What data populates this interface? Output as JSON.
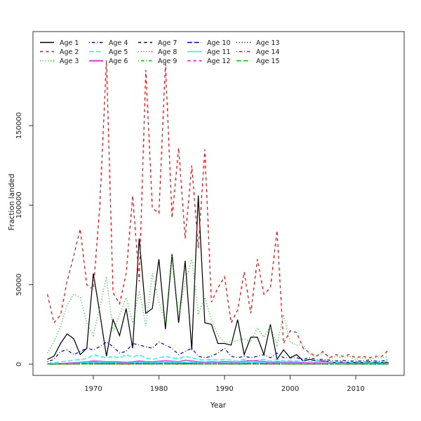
{
  "chart_data": {
    "type": "line",
    "title": "",
    "xlabel": "Year",
    "ylabel": "Fraction landed",
    "x_ticks": [
      1970,
      1980,
      1990,
      2000,
      2010
    ],
    "y_ticks": [
      0,
      50000,
      100000,
      150000
    ],
    "xlim": [
      1961,
      2017
    ],
    "ylim": [
      0,
      195000
    ],
    "grid": false,
    "legend_position": "top-left",
    "legend_columns": 5,
    "x": [
      1963,
      1964,
      1965,
      1966,
      1967,
      1968,
      1969,
      1970,
      1971,
      1972,
      1973,
      1974,
      1975,
      1976,
      1977,
      1978,
      1979,
      1980,
      1981,
      1982,
      1983,
      1984,
      1985,
      1986,
      1987,
      1988,
      1989,
      1990,
      1991,
      1992,
      1993,
      1994,
      1995,
      1996,
      1997,
      1998,
      1999,
      2000,
      2001,
      2002,
      2003,
      2004,
      2005,
      2006,
      2007,
      2008,
      2009,
      2010,
      2011,
      2012,
      2013,
      2014,
      2015
    ],
    "series": [
      {
        "name": "Age 1",
        "color": "#000000",
        "linestyle": "solid",
        "values": [
          3000,
          5000,
          13000,
          19000,
          16000,
          6000,
          10000,
          57000,
          32000,
          5000,
          28000,
          18000,
          35000,
          10000,
          79000,
          32000,
          35000,
          66000,
          22000,
          69000,
          26000,
          65000,
          9000,
          106000,
          26000,
          25000,
          13000,
          13000,
          12000,
          28000,
          6000,
          17000,
          17000,
          6000,
          25000,
          3000,
          9000,
          4000,
          6000,
          2000,
          3000,
          2000,
          2000,
          1500,
          1000,
          1500,
          1000,
          1000,
          1000,
          1500,
          1000,
          1000,
          1000
        ]
      },
      {
        "name": "Age 2",
        "color": "#ff0000",
        "linestyle": "dashed",
        "values": [
          44000,
          26000,
          31000,
          52000,
          68000,
          85000,
          50000,
          47000,
          100000,
          191000,
          45000,
          38000,
          57000,
          106000,
          52000,
          185000,
          98000,
          95000,
          189000,
          92000,
          136000,
          79000,
          125000,
          73000,
          135000,
          39000,
          48000,
          55000,
          26000,
          34000,
          58000,
          32000,
          66000,
          44000,
          48000,
          84000,
          13000,
          21000,
          20000,
          10000,
          7000,
          5000,
          8000,
          4000,
          6000,
          5000,
          6000,
          4000,
          5000,
          4000,
          5000,
          5000,
          9000
        ]
      },
      {
        "name": "Age 3",
        "color": "#00cd00",
        "linestyle": "dotted",
        "values": [
          7000,
          14000,
          24000,
          37000,
          44000,
          42000,
          26000,
          18000,
          36000,
          55000,
          21000,
          31000,
          42000,
          26000,
          46000,
          24000,
          57000,
          39000,
          26000,
          70000,
          29000,
          52000,
          66000,
          32000,
          42000,
          28000,
          18000,
          14000,
          14000,
          15000,
          16000,
          14000,
          23000,
          17000,
          24000,
          12000,
          31000,
          14000,
          12000,
          12000,
          6000,
          5000,
          7000,
          4000,
          5000,
          4000,
          5000,
          3000,
          4000,
          3000,
          4000,
          4000,
          5000
        ]
      },
      {
        "name": "Age 4",
        "color": "#0000ff",
        "linestyle": "dotdash",
        "values": [
          1500,
          3000,
          8000,
          9000,
          6000,
          8000,
          10000,
          9000,
          11000,
          14000,
          11000,
          7000,
          8000,
          13000,
          12000,
          11000,
          10000,
          14000,
          12000,
          10000,
          6000,
          8000,
          10000,
          5000,
          4000,
          5000,
          7000,
          10000,
          5000,
          4000,
          5000,
          4000,
          5000,
          6000,
          4000,
          7000,
          4000,
          4000,
          4000,
          3000,
          4000,
          3000,
          3000,
          2500,
          2000,
          2500,
          2000,
          2000,
          2000,
          2500,
          2000,
          2000,
          3000
        ]
      },
      {
        "name": "Age 5",
        "color": "#00ffff",
        "linestyle": "longdash",
        "values": [
          500,
          1000,
          1500,
          2000,
          2500,
          3000,
          3500,
          6000,
          5000,
          4000,
          5000,
          4000,
          6000,
          4500,
          6000,
          4000,
          3000,
          4000,
          5000,
          4000,
          3500,
          5000,
          4000,
          3000,
          2500,
          3000,
          2500,
          3000,
          2500,
          2000,
          3000,
          2000,
          2500,
          3000,
          2000,
          3000,
          2000,
          2500,
          2000,
          2000,
          1500,
          2000,
          1500,
          1500,
          1000,
          1500,
          1000,
          1500,
          1000,
          1000,
          1500,
          1000,
          2000
        ]
      },
      {
        "name": "Age 6",
        "color": "#ff00ff",
        "linestyle": "solid",
        "values": [
          300,
          400,
          600,
          800,
          1000,
          1200,
          1500,
          2000,
          1800,
          1500,
          1600,
          1400,
          1200,
          1500,
          2000,
          1600,
          1400,
          1800,
          2200,
          1800,
          1500,
          2500,
          2000,
          1500,
          1200,
          1500,
          1300,
          1600,
          1400,
          1200,
          1800,
          2200,
          2000,
          1600,
          1200,
          1500,
          1200,
          1400,
          1200,
          1000,
          800,
          1000,
          800,
          800,
          600,
          800,
          600,
          600,
          500,
          600,
          500,
          500,
          800
        ]
      },
      {
        "name": "Age 7",
        "color": "#000000",
        "linestyle": "dashed",
        "values": [
          200,
          300,
          400,
          500,
          600,
          800,
          1000,
          1200,
          1000,
          900,
          1000,
          800,
          700,
          900,
          1200,
          1000,
          800,
          1000,
          1200,
          1000,
          800,
          1200,
          1000,
          800,
          600,
          800,
          700,
          800,
          700,
          600,
          900,
          1100,
          1000,
          800,
          600,
          800,
          600,
          700,
          600,
          500,
          400,
          500,
          400,
          400,
          300,
          400,
          300,
          300,
          250,
          300,
          250,
          250,
          400
        ]
      },
      {
        "name": "Age 8",
        "color": "#ff0000",
        "linestyle": "dotted",
        "values": [
          120,
          180,
          240,
          300,
          360,
          480,
          600,
          720,
          600,
          540,
          600,
          480,
          420,
          540,
          720,
          600,
          480,
          600,
          720,
          600,
          480,
          720,
          600,
          480,
          360,
          480,
          420,
          480,
          420,
          360,
          540,
          660,
          600,
          480,
          360,
          480,
          360,
          420,
          360,
          300,
          240,
          300,
          240,
          240,
          180,
          240,
          180,
          180,
          150,
          180,
          150,
          150,
          240
        ]
      },
      {
        "name": "Age 9",
        "color": "#00cd00",
        "linestyle": "dotdash",
        "values": [
          90,
          140,
          180,
          230,
          270,
          360,
          450,
          540,
          450,
          410,
          450,
          360,
          320,
          410,
          540,
          450,
          360,
          450,
          540,
          450,
          360,
          540,
          450,
          360,
          270,
          360,
          320,
          360,
          320,
          270,
          410,
          500,
          450,
          360,
          270,
          360,
          270,
          320,
          270,
          230,
          180,
          230,
          180,
          180,
          140,
          180,
          140,
          140,
          110,
          140,
          110,
          110,
          180
        ]
      },
      {
        "name": "Age 10",
        "color": "#0000ff",
        "linestyle": "longdash",
        "values": [
          60,
          100,
          130,
          160,
          190,
          260,
          320,
          380,
          320,
          290,
          320,
          260,
          220,
          290,
          380,
          320,
          260,
          320,
          380,
          320,
          260,
          380,
          320,
          260,
          190,
          260,
          220,
          260,
          220,
          190,
          290,
          350,
          320,
          260,
          190,
          260,
          190,
          220,
          190,
          160,
          130,
          160,
          130,
          130,
          100,
          130,
          100,
          100,
          80,
          100,
          80,
          80,
          130
        ]
      },
      {
        "name": "Age 11",
        "color": "#00ffff",
        "linestyle": "solid",
        "values": [
          300,
          400,
          500,
          600,
          700,
          900,
          1100,
          1300,
          1100,
          1000,
          1100,
          900,
          800,
          1000,
          1300,
          1100,
          900,
          1100,
          1300,
          1100,
          900,
          1300,
          1100,
          900,
          700,
          900,
          800,
          900,
          800,
          700,
          1000,
          1200,
          1100,
          900,
          700,
          900,
          700,
          800,
          700,
          600,
          500,
          600,
          500,
          500,
          400,
          500,
          400,
          400,
          350,
          400,
          350,
          350,
          500
        ]
      },
      {
        "name": "Age 12",
        "color": "#ff00ff",
        "linestyle": "dashed",
        "values": [
          40,
          60,
          80,
          100,
          120,
          160,
          200,
          240,
          200,
          180,
          200,
          160,
          140,
          180,
          240,
          200,
          160,
          200,
          240,
          200,
          160,
          240,
          200,
          160,
          120,
          160,
          140,
          160,
          140,
          120,
          180,
          220,
          200,
          160,
          120,
          160,
          120,
          140,
          120,
          100,
          80,
          100,
          80,
          80,
          60,
          80,
          60,
          60,
          50,
          60,
          50,
          50,
          80
        ]
      },
      {
        "name": "Age 13",
        "color": "#000000",
        "linestyle": "dotted",
        "values": [
          20,
          40,
          50,
          60,
          70,
          100,
          120,
          140,
          120,
          110,
          120,
          100,
          80,
          110,
          140,
          120,
          100,
          120,
          140,
          120,
          100,
          140,
          120,
          100,
          70,
          100,
          80,
          100,
          80,
          70,
          110,
          130,
          120,
          100,
          70,
          100,
          70,
          80,
          70,
          60,
          50,
          60,
          50,
          50,
          40,
          50,
          40,
          40,
          30,
          40,
          30,
          30,
          50
        ]
      },
      {
        "name": "Age 14",
        "color": "#ff0000",
        "linestyle": "dotdash",
        "values": [
          20,
          20,
          30,
          40,
          50,
          60,
          80,
          100,
          80,
          70,
          80,
          60,
          60,
          70,
          100,
          80,
          60,
          80,
          100,
          80,
          60,
          100,
          80,
          60,
          50,
          60,
          60,
          60,
          60,
          50,
          70,
          90,
          80,
          60,
          50,
          60,
          50,
          60,
          50,
          40,
          30,
          40,
          30,
          30,
          20,
          30,
          20,
          20,
          20,
          20,
          20,
          20,
          30
        ]
      },
      {
        "name": "Age 15",
        "color": "#00cd00",
        "linestyle": "longdash",
        "values": [
          10,
          10,
          20,
          20,
          30,
          40,
          50,
          60,
          50,
          50,
          50,
          40,
          40,
          50,
          60,
          50,
          40,
          50,
          60,
          50,
          40,
          60,
          50,
          40,
          30,
          40,
          40,
          40,
          40,
          30,
          50,
          60,
          50,
          40,
          30,
          40,
          30,
          40,
          30,
          30,
          20,
          30,
          20,
          20,
          20,
          20,
          20,
          20,
          10,
          20,
          10,
          10,
          20
        ]
      }
    ]
  }
}
